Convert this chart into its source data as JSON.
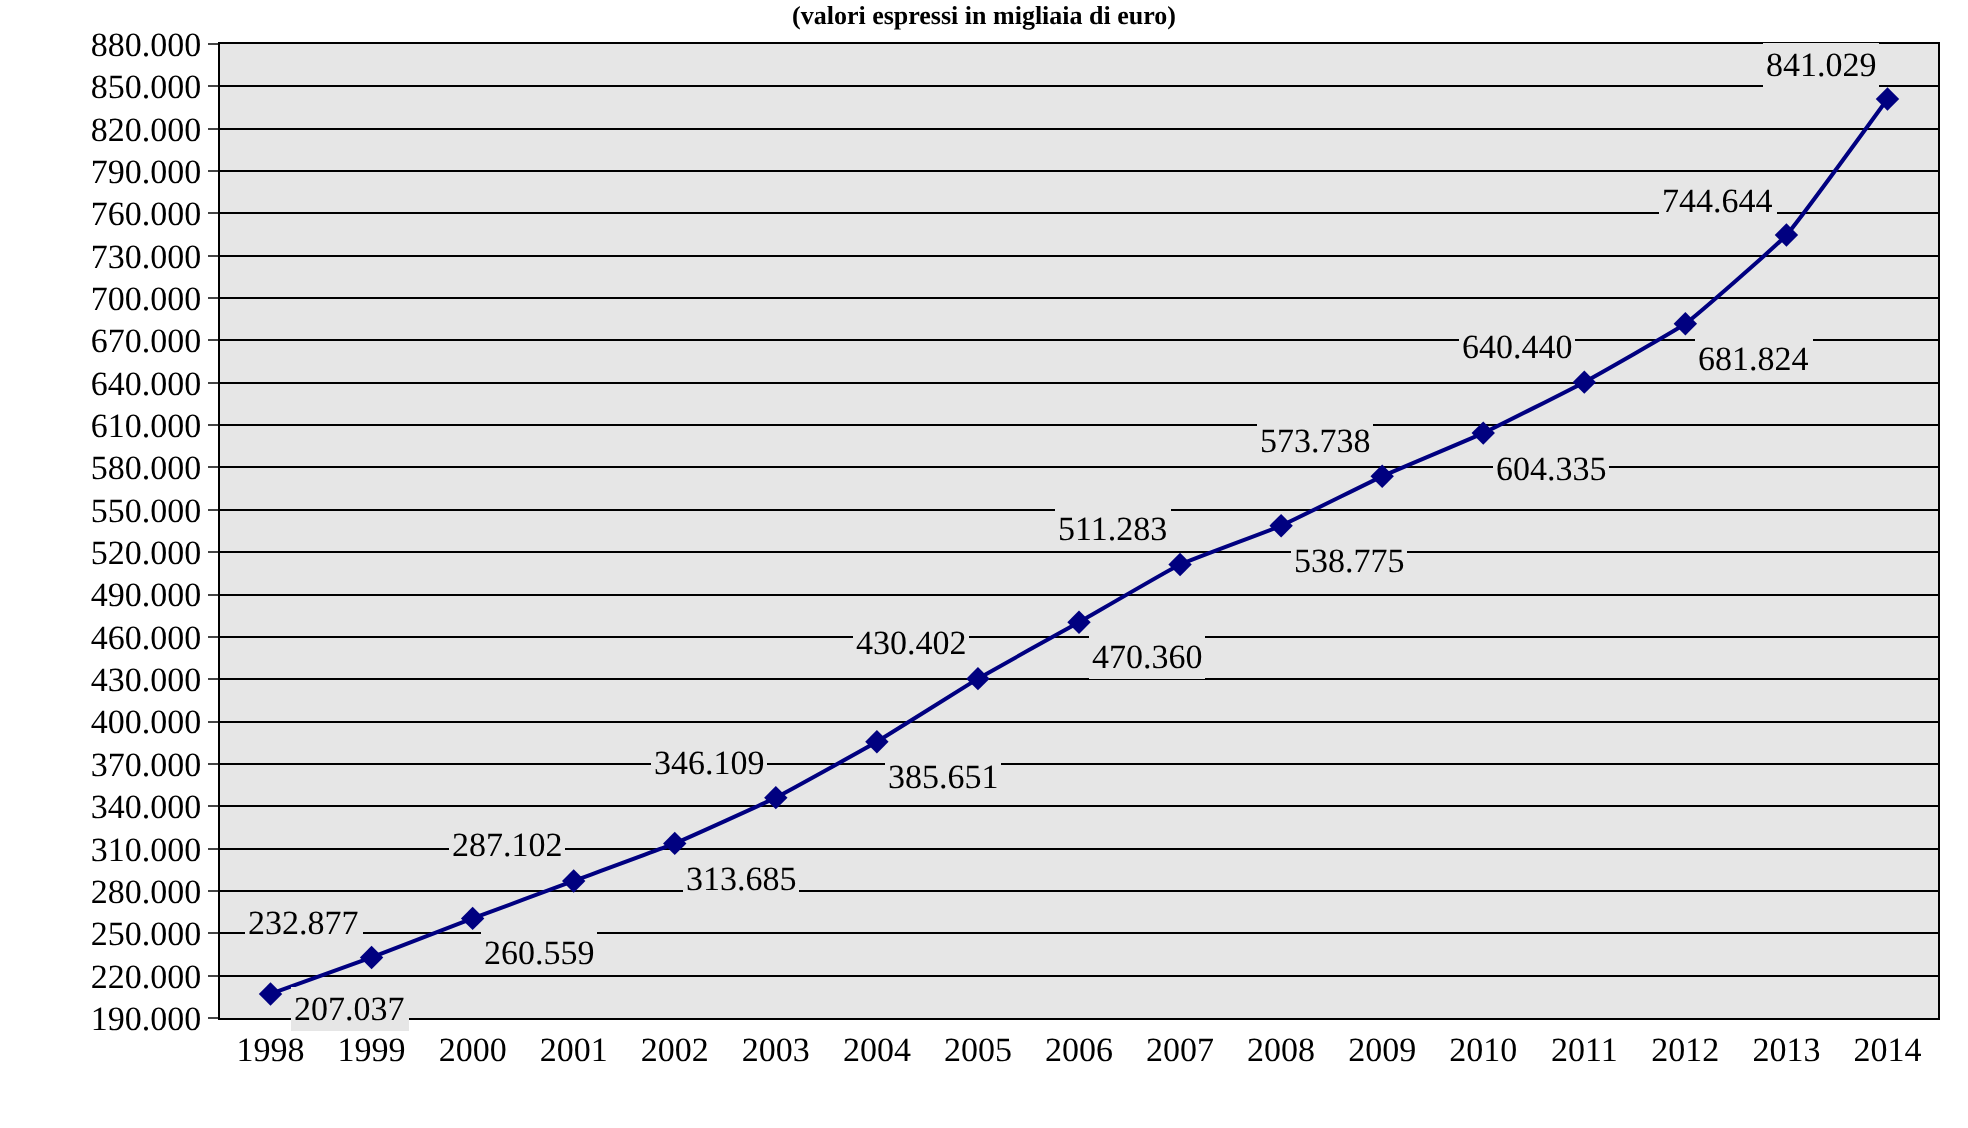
{
  "chart_data": {
    "type": "line",
    "title": "(valori espressi in migliaia di euro)",
    "categories": [
      "1998",
      "1999",
      "2000",
      "2001",
      "2002",
      "2003",
      "2004",
      "2005",
      "2006",
      "2007",
      "2008",
      "2009",
      "2010",
      "2011",
      "2012",
      "2013",
      "2014"
    ],
    "series": [
      {
        "color": "#000080",
        "values": [
          207037,
          232877,
          260559,
          287102,
          313685,
          346109,
          385651,
          430402,
          470360,
          511283,
          538775,
          573738,
          604335,
          640440,
          681824,
          744644,
          841029
        ],
        "value_labels": [
          "207.037",
          "232.877",
          "260.559",
          "287.102",
          "313.685",
          "346.109",
          "385.651",
          "430.402",
          "470.360",
          "511.283",
          "538.775",
          "573.738",
          "604.335",
          "640.440",
          "681.824",
          "744.644",
          "841.029"
        ]
      }
    ],
    "ylim": [
      190000,
      880000
    ],
    "yticks": [
      {
        "value": 190000,
        "label": "190.000"
      },
      {
        "value": 220000,
        "label": "220.000"
      },
      {
        "value": 250000,
        "label": "250.000"
      },
      {
        "value": 280000,
        "label": "280.000"
      },
      {
        "value": 310000,
        "label": "310.000"
      },
      {
        "value": 340000,
        "label": "340.000"
      },
      {
        "value": 370000,
        "label": "370.000"
      },
      {
        "value": 400000,
        "label": "400.000"
      },
      {
        "value": 430000,
        "label": "430.000"
      },
      {
        "value": 460000,
        "label": "460.000"
      },
      {
        "value": 490000,
        "label": "490.000"
      },
      {
        "value": 520000,
        "label": "520.000"
      },
      {
        "value": 550000,
        "label": "550.000"
      },
      {
        "value": 580000,
        "label": "580.000"
      },
      {
        "value": 610000,
        "label": "610.000"
      },
      {
        "value": 640000,
        "label": "640.000"
      },
      {
        "value": 670000,
        "label": "670.000"
      },
      {
        "value": 700000,
        "label": "700.000"
      },
      {
        "value": 730000,
        "label": "730.000"
      },
      {
        "value": 760000,
        "label": "760.000"
      },
      {
        "value": 790000,
        "label": "790.000"
      },
      {
        "value": 820000,
        "label": "820.000"
      },
      {
        "value": 850000,
        "label": "850.000"
      },
      {
        "value": 880000,
        "label": "880.000"
      }
    ],
    "grid": "y",
    "marker": "diamond",
    "line_style": "solid",
    "legend": false
  }
}
